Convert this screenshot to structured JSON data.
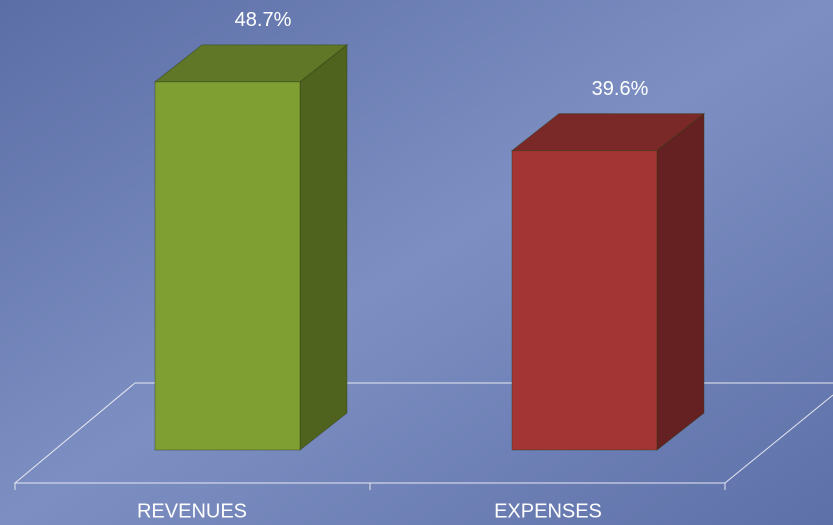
{
  "chart_data": {
    "type": "bar3d",
    "categories": [
      "REVENUES",
      "EXPENSES"
    ],
    "values": [
      48.7,
      39.6
    ],
    "value_labels": [
      "48.7%",
      "39.6%"
    ],
    "colors": [
      "#7f9f32",
      "#a33535"
    ]
  }
}
